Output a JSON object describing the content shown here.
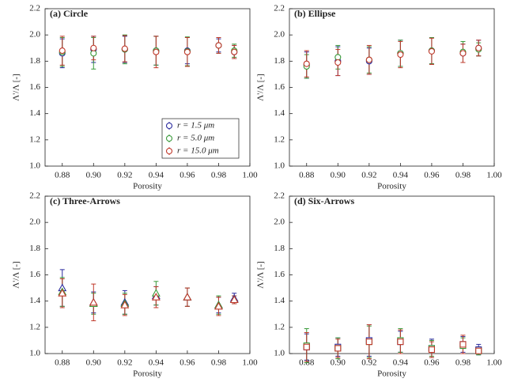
{
  "chart_data": [
    {
      "type": "errorbar",
      "title": "(a) Circle",
      "xlabel": "Porosity",
      "ylabel": "Λ'/Λ [-]",
      "marker": "circle",
      "legend": "lower right",
      "x": [
        0.88,
        0.9,
        0.92,
        0.94,
        0.96,
        0.98,
        0.99
      ],
      "series": [
        {
          "name": "r = 1.5 μm",
          "color": "#2b2b9e",
          "values": [
            1.86,
            1.89,
            1.89,
            1.88,
            1.88,
            1.92,
            1.87
          ],
          "errors": [
            0.11,
            0.1,
            0.1,
            0.11,
            0.1,
            0.05,
            0.05
          ]
        },
        {
          "name": "r = 5.0 μm",
          "color": "#3a9a3a",
          "values": [
            1.87,
            1.86,
            1.89,
            1.88,
            1.875,
            1.92,
            1.88
          ],
          "errors": [
            0.11,
            0.12,
            0.11,
            0.11,
            0.11,
            0.06,
            0.05
          ]
        },
        {
          "name": "r = 15.0 μm",
          "color": "#c0392b",
          "values": [
            1.88,
            1.9,
            1.895,
            1.87,
            1.87,
            1.92,
            1.87
          ],
          "errors": [
            0.11,
            0.09,
            0.1,
            0.12,
            0.11,
            0.06,
            0.05
          ]
        }
      ],
      "xlim": [
        0.869,
        1.0
      ],
      "ylim": [
        1.0,
        2.2
      ],
      "xticks": [
        0.88,
        {
          "value": 0.9,
          "label": "0.90"
        },
        0.92,
        0.94,
        0.96,
        0.98,
        {
          "value": 1.0,
          "label": "1.00"
        }
      ],
      "yticks": [
        {
          "value": 1.0,
          "label": "1.0"
        },
        1.2,
        1.4,
        1.6,
        1.8,
        {
          "value": 2.0,
          "label": "2.0"
        },
        2.2
      ]
    },
    {
      "type": "errorbar",
      "title": "(b) Ellipse",
      "xlabel": "Porosity",
      "ylabel": "Λ'/Λ [-]",
      "marker": "circle",
      "x": [
        0.88,
        0.9,
        0.92,
        0.94,
        0.96,
        0.98,
        0.99
      ],
      "series": [
        {
          "color": "#2b2b9e",
          "values": [
            1.77,
            1.8,
            1.8,
            1.86,
            1.88,
            1.86,
            1.9
          ],
          "errors": [
            0.1,
            0.11,
            0.1,
            0.1,
            0.1,
            0.07,
            0.06
          ]
        },
        {
          "color": "#3a9a3a",
          "values": [
            1.76,
            1.83,
            1.81,
            1.86,
            1.88,
            1.87,
            1.89
          ],
          "errors": [
            0.09,
            0.09,
            0.1,
            0.1,
            0.1,
            0.08,
            0.05
          ]
        },
        {
          "color": "#c0392b",
          "values": [
            1.78,
            1.79,
            1.81,
            1.85,
            1.875,
            1.86,
            1.9
          ],
          "errors": [
            0.1,
            0.1,
            0.11,
            0.1,
            0.1,
            0.07,
            0.06
          ]
        }
      ],
      "xlim": [
        0.869,
        1.0
      ],
      "ylim": [
        1.0,
        2.2
      ],
      "xticks": [
        0.88,
        {
          "value": 0.9,
          "label": "0.90"
        },
        0.92,
        0.94,
        0.96,
        0.98,
        {
          "value": 1.0,
          "label": "1.00"
        }
      ],
      "yticks": [
        {
          "value": 1.0,
          "label": "1.0"
        },
        1.2,
        1.4,
        1.6,
        1.8,
        {
          "value": 2.0,
          "label": "2.0"
        },
        2.2
      ]
    },
    {
      "type": "errorbar",
      "title": "(c) Three-Arrows",
      "xlabel": "Porosity",
      "ylabel": "Λ'/Λ [-]",
      "marker": "triangle",
      "x": [
        0.88,
        0.9,
        0.92,
        0.94,
        0.96,
        0.98,
        0.99
      ],
      "series": [
        {
          "color": "#2b2b9e",
          "values": [
            1.5,
            1.39,
            1.39,
            1.44,
            1.43,
            1.37,
            1.42
          ],
          "errors": [
            0.14,
            0.08,
            0.09,
            0.07,
            0.07,
            0.06,
            0.04
          ]
        },
        {
          "color": "#3a9a3a",
          "values": [
            1.47,
            1.38,
            1.38,
            1.46,
            1.43,
            1.37,
            1.41
          ],
          "errors": [
            0.11,
            0.08,
            0.08,
            0.09,
            0.07,
            0.07,
            0.03
          ]
        },
        {
          "color": "#c0392b",
          "values": [
            1.46,
            1.39,
            1.37,
            1.43,
            1.43,
            1.36,
            1.41
          ],
          "errors": [
            0.11,
            0.14,
            0.08,
            0.08,
            0.07,
            0.07,
            0.03
          ]
        }
      ],
      "xlim": [
        0.869,
        1.0
      ],
      "ylim": [
        1.0,
        2.2
      ],
      "xticks": [
        0.88,
        {
          "value": 0.9,
          "label": "0.90"
        },
        0.92,
        0.94,
        0.96,
        0.98,
        {
          "value": 1.0,
          "label": "1.00"
        }
      ],
      "yticks": [
        {
          "value": 1.0,
          "label": "1.0"
        },
        1.2,
        1.4,
        1.6,
        1.8,
        {
          "value": 2.0,
          "label": "2.0"
        },
        2.2
      ]
    },
    {
      "type": "errorbar",
      "title": "(d) Six-Arrows",
      "xlabel": "Porosity",
      "ylabel": "Λ'/Λ [-]",
      "marker": "square",
      "x": [
        0.88,
        0.9,
        0.92,
        0.94,
        0.96,
        0.98,
        0.99
      ],
      "series": [
        {
          "color": "#2b2b9e",
          "values": [
            1.05,
            1.05,
            1.1,
            1.09,
            1.04,
            1.07,
            1.03
          ],
          "errors": [
            0.1,
            0.07,
            0.12,
            0.08,
            0.07,
            0.06,
            0.04
          ]
        },
        {
          "color": "#3a9a3a",
          "values": [
            1.06,
            1.04,
            1.09,
            1.1,
            1.04,
            1.06,
            1.02
          ],
          "errors": [
            0.13,
            0.08,
            0.12,
            0.09,
            0.06,
            0.06,
            0.03
          ]
        },
        {
          "color": "#c0392b",
          "values": [
            1.05,
            1.04,
            1.09,
            1.09,
            1.03,
            1.07,
            1.02
          ],
          "errors": [
            0.11,
            0.07,
            0.13,
            0.09,
            0.06,
            0.07,
            0.02
          ]
        }
      ],
      "xlim": [
        0.869,
        1.0
      ],
      "ylim": [
        1.0,
        2.2
      ],
      "xticks": [
        0.88,
        {
          "value": 0.9,
          "label": "0.90"
        },
        0.92,
        0.94,
        0.96,
        0.98,
        {
          "value": 1.0,
          "label": "1.00"
        }
      ],
      "yticks": [
        {
          "value": 1.0,
          "label": "1.0"
        },
        1.2,
        1.4,
        1.6,
        1.8,
        {
          "value": 2.0,
          "label": "2.0"
        },
        2.2
      ]
    }
  ]
}
